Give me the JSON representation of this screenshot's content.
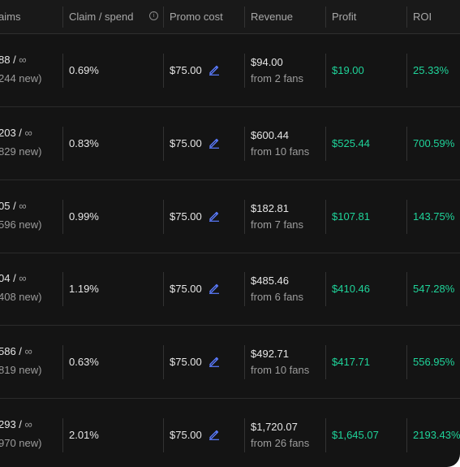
{
  "headers": {
    "claims": "aims",
    "claim_spend": "Claim / spend",
    "promo_cost": "Promo cost",
    "revenue": "Revenue",
    "profit": "Profit",
    "roi": "ROI"
  },
  "infinity_symbol": "∞",
  "rows": [
    {
      "claims": "88 / ",
      "claims_new": "244 new)",
      "claim_spend": "0.69%",
      "promo_cost": "$75.00",
      "revenue": "$94.00",
      "revenue_fans": "from 2 fans",
      "profit": "$19.00",
      "roi": "25.33%"
    },
    {
      "claims": "203 / ",
      "claims_new": "829 new)",
      "claim_spend": "0.83%",
      "promo_cost": "$75.00",
      "revenue": "$600.44",
      "revenue_fans": "from 10 fans",
      "profit": "$525.44",
      "roi": "700.59%"
    },
    {
      "claims": "05 / ",
      "claims_new": "596 new)",
      "claim_spend": "0.99%",
      "promo_cost": "$75.00",
      "revenue": "$182.81",
      "revenue_fans": "from 7 fans",
      "profit": "$107.81",
      "roi": "143.75%"
    },
    {
      "claims": "04 / ",
      "claims_new": "408 new)",
      "claim_spend": "1.19%",
      "promo_cost": "$75.00",
      "revenue": "$485.46",
      "revenue_fans": "from 6 fans",
      "profit": "$410.46",
      "roi": "547.28%"
    },
    {
      "claims": "586 / ",
      "claims_new": "819 new)",
      "claim_spend": "0.63%",
      "promo_cost": "$75.00",
      "revenue": "$492.71",
      "revenue_fans": "from 10 fans",
      "profit": "$417.71",
      "roi": "556.95%"
    },
    {
      "claims": "293 / ",
      "claims_new": "970 new)",
      "claim_spend": "2.01%",
      "promo_cost": "$75.00",
      "revenue": "$1,720.07",
      "revenue_fans": "from 26 fans",
      "profit": "$1,645.07",
      "roi": "2193.43%"
    }
  ],
  "colors": {
    "background": "#141414",
    "positive": "#1fd49a",
    "edit_icon": "#5b7cff"
  }
}
